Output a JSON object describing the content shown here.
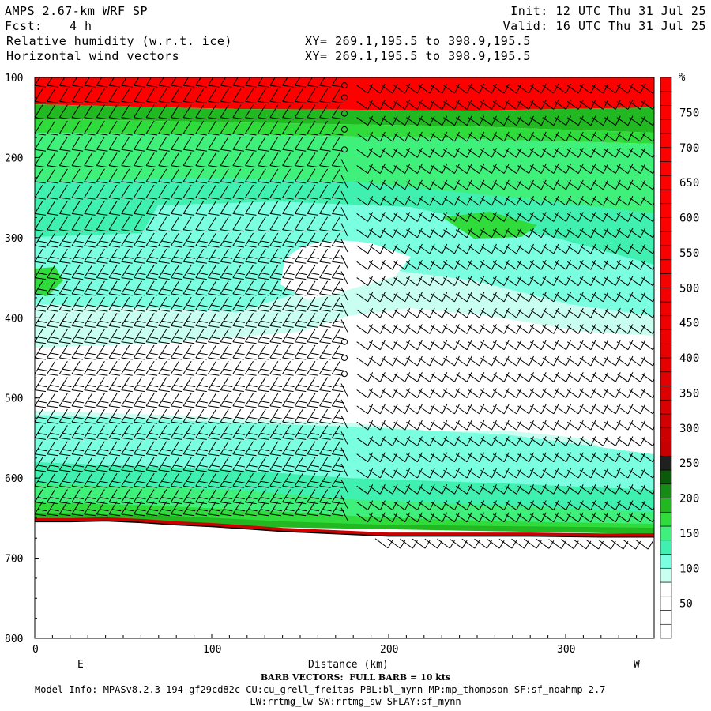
{
  "header": {
    "model": "AMPS 2.67-km WRF SP",
    "fcst_label": "Fcst:",
    "fcst_value": "4 h",
    "field1": "Relative humidity (w.r.t. ice)",
    "field2": "Horizontal wind vectors",
    "xy1": "XY= 269.1,195.5 to 398.9,195.5",
    "xy2": "XY= 269.1,195.5 to 398.9,195.5",
    "init": "Init: 12 UTC Thu 31 Jul 25",
    "valid": "Valid: 16 UTC Thu 31 Jul 25"
  },
  "footer": {
    "barb_note": "BARB VECTORS:  FULL BARB = 10 kts",
    "model_info": "Model Info: MPASv8.2.3-194-gf29cd82c CU:cu_grell_freitas PBL:bl_mynn MP:mp_thompson SF:sf_noahmp 2.7",
    "model_info2": "LW:rrtmg_lw SW:rrtmg_sw SFLAY:sf_mynn"
  },
  "chart_data": {
    "type": "heatmap",
    "title": "Relative humidity (w.r.t. ice)",
    "xlabel": "Distance (km)",
    "ylabel": "",
    "xlim": [
      0,
      350
    ],
    "ylim": [
      800,
      100
    ],
    "x_ticks": [
      0,
      100,
      200,
      300
    ],
    "y_ticks": [
      100,
      200,
      300,
      400,
      500,
      600,
      700,
      800
    ],
    "x_end_labels": [
      "E",
      "W"
    ],
    "colorbar": {
      "unit": "%",
      "tick_labels": [
        50,
        100,
        150,
        200,
        250,
        300,
        350,
        400,
        450,
        500,
        550,
        600,
        650,
        700,
        750
      ],
      "colors": [
        "#ffffff",
        "#ffffff",
        "#ffffff",
        "#ffffff",
        "#c8fff0",
        "#7affe0",
        "#3ff0b0",
        "#3ff07a",
        "#2fdc3c",
        "#22b822",
        "#168c16",
        "#0a5a0a",
        "#202020",
        "#c60000",
        "#cc0000",
        "#d20000",
        "#d80000",
        "#dd0000",
        "#e20000",
        "#e60000",
        "#ea0000",
        "#ee0000",
        "#f00000",
        "#f20000",
        "#f40000",
        "#f60000",
        "#f80000",
        "#fa0000",
        "#fc0000",
        "#fd0000",
        "#ff0000",
        "#ff0000",
        "#ff0000",
        "#ff0000",
        "#ff0000",
        "#ff0000",
        "#ff0000",
        "#ff0000",
        "#ff0000",
        "#ff0000"
      ]
    },
    "rh_layers": [
      {
        "name": "rh-above-100",
        "color": "#ff0000"
      },
      {
        "name": "rh-100",
        "color": "#22b822"
      },
      {
        "name": "rh-80",
        "color": "#2fdc3c"
      },
      {
        "name": "rh-60",
        "color": "#3ff07a"
      },
      {
        "name": "rh-50",
        "color": "#3ff0b0"
      },
      {
        "name": "rh-40",
        "color": "#7affe0"
      },
      {
        "name": "rh-30",
        "color": "#c8fff0"
      }
    ],
    "terrain_pressure": {
      "x": [
        0,
        20,
        40,
        60,
        80,
        100,
        120,
        140,
        160,
        180,
        200,
        240,
        280,
        320,
        350
      ],
      "p": [
        652,
        652,
        651,
        653,
        656,
        658,
        661,
        664,
        666,
        668,
        670,
        670,
        670,
        671,
        671
      ]
    },
    "wind_barbs": {
      "x_columns_km": [
        0,
        7,
        14,
        21,
        28,
        35,
        42,
        49,
        56,
        63,
        70,
        77,
        84,
        91,
        98,
        105,
        112,
        119,
        126,
        133,
        140,
        147,
        154,
        161,
        168,
        175,
        182,
        189,
        196,
        203,
        210,
        217,
        224,
        231,
        238,
        245,
        252,
        259,
        266,
        273,
        280,
        287,
        294,
        301,
        308,
        315,
        322,
        329,
        336,
        343
      ],
      "pressure_levels": [
        110,
        130,
        150,
        170,
        190,
        210,
        230,
        250,
        270,
        290,
        310,
        330,
        350,
        370,
        390,
        410,
        430,
        450,
        470,
        490,
        510,
        530,
        550,
        570,
        590,
        610,
        630,
        645
      ],
      "calm_column_km": 175,
      "calm_pressures": [
        110,
        125,
        145,
        165,
        190,
        430,
        450,
        470
      ],
      "full_barb_kts": 10
    }
  },
  "colors": {
    "plot_bg": "#ffffff",
    "terrain_line": "#cc0000"
  }
}
